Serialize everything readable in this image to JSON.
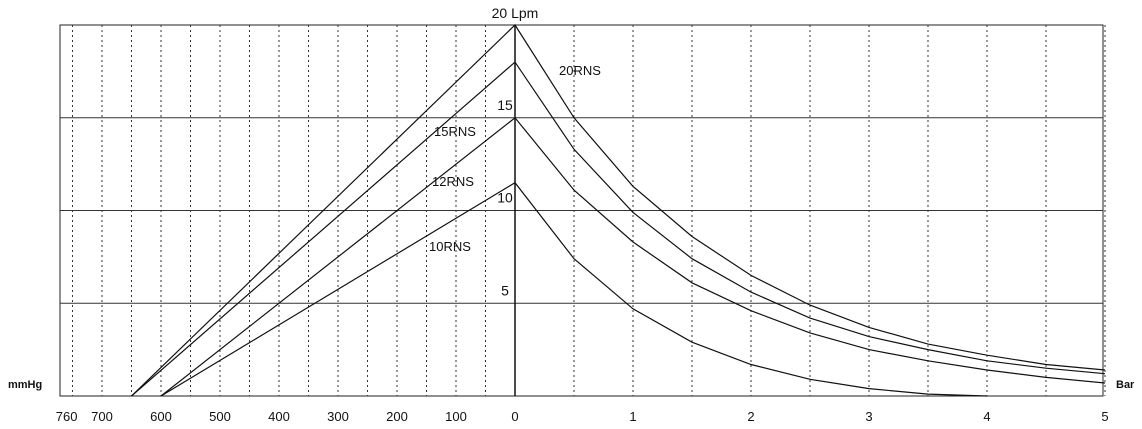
{
  "chart_data": {
    "type": "line",
    "title": "",
    "top_label": "20 Lpm",
    "left_unit": "mmHg",
    "right_unit": "Bar",
    "vacuum_axis": {
      "labels": [
        "760",
        "700",
        "600",
        "500",
        "400",
        "300",
        "200",
        "100",
        "0"
      ],
      "values": [
        760,
        700,
        600,
        500,
        400,
        300,
        200,
        100,
        0
      ]
    },
    "pressure_axis": {
      "labels": [
        "0",
        "1",
        "2",
        "3",
        "4",
        "5"
      ],
      "values": [
        0,
        1,
        2,
        3,
        4,
        5
      ]
    },
    "flow_ticks": {
      "labels": [
        "5",
        "10",
        "15"
      ],
      "values": [
        5,
        10,
        15
      ]
    },
    "ylim": [
      0,
      20
    ],
    "grid": true,
    "series": [
      {
        "name": "20RNS",
        "vacuum": [
          [
            0,
            18
          ],
          [
            650,
            0
          ]
        ],
        "pressure": [
          [
            0,
            18
          ],
          [
            0.5,
            13.3
          ],
          [
            1,
            9.9
          ],
          [
            1.5,
            7.4
          ],
          [
            2,
            5.6
          ],
          [
            2.5,
            4.2
          ],
          [
            3,
            3.2
          ],
          [
            3.5,
            2.5
          ],
          [
            4,
            1.9
          ],
          [
            4.5,
            1.5
          ],
          [
            5,
            1.2
          ]
        ]
      },
      {
        "name": "15RNS",
        "vacuum": [
          [
            0,
            15
          ],
          [
            600,
            0
          ]
        ],
        "pressure": [
          [
            0,
            15
          ],
          [
            0.5,
            11.1
          ],
          [
            1,
            8.3
          ],
          [
            1.5,
            6.1
          ],
          [
            2,
            4.6
          ],
          [
            2.5,
            3.4
          ],
          [
            3,
            2.5
          ],
          [
            3.5,
            1.9
          ],
          [
            4,
            1.4
          ],
          [
            4.5,
            1.0
          ],
          [
            5,
            0.7
          ]
        ]
      },
      {
        "name": "12RNS",
        "vacuum": [
          [
            0,
            20
          ],
          [
            650,
            0
          ]
        ],
        "pressure": [
          [
            0,
            20
          ],
          [
            0.5,
            15
          ],
          [
            1,
            11.3
          ],
          [
            1.5,
            8.6
          ],
          [
            2,
            6.5
          ],
          [
            2.5,
            4.9
          ],
          [
            3,
            3.7
          ],
          [
            3.5,
            2.8
          ],
          [
            4,
            2.2
          ],
          [
            4.5,
            1.7
          ],
          [
            5,
            1.4
          ]
        ]
      },
      {
        "name": "10RNS",
        "vacuum": [
          [
            0,
            11.5
          ],
          [
            600,
            0
          ]
        ],
        "pressure": [
          [
            0,
            11.5
          ],
          [
            0.5,
            7.4
          ],
          [
            1,
            4.7
          ],
          [
            1.5,
            2.9
          ],
          [
            2,
            1.7
          ],
          [
            2.5,
            0.9
          ],
          [
            3,
            0.4
          ],
          [
            3.5,
            0.1
          ],
          [
            4,
            0.0
          ]
        ]
      }
    ],
    "curve_labels": [
      "20RNS",
      "15RNS",
      "12RNS",
      "10RNS"
    ]
  }
}
